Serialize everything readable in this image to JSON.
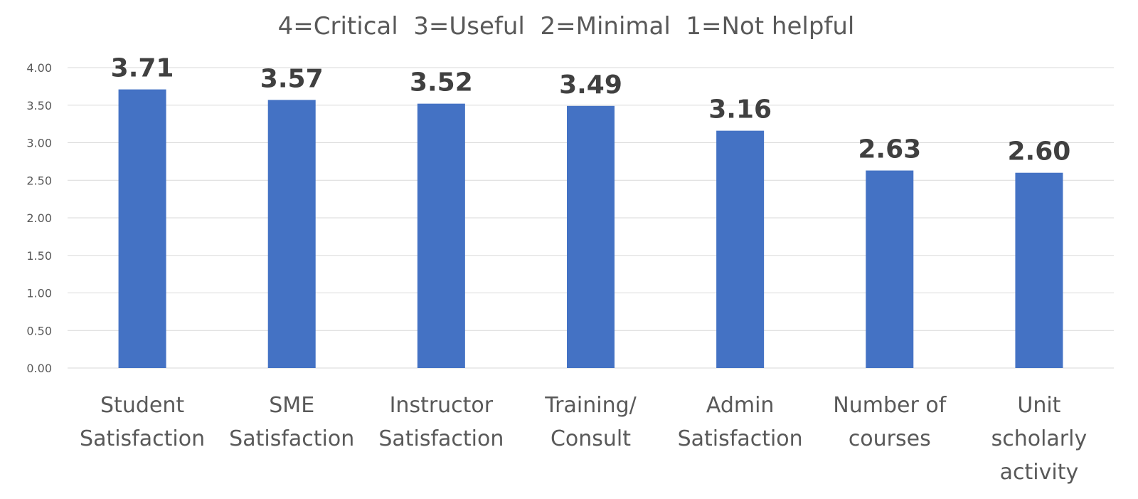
{
  "chart_data": {
    "type": "bar",
    "title": "4=Critical  3=Useful  2=Minimal  1=Not helpful",
    "xlabel": "",
    "ylabel": "",
    "categories": [
      [
        "Student",
        "Satisfaction"
      ],
      [
        "SME",
        "Satisfaction"
      ],
      [
        "Instructor",
        "Satisfaction"
      ],
      [
        "Training/",
        "Consult"
      ],
      [
        "Admin",
        "Satisfaction"
      ],
      [
        "Number of",
        "courses"
      ],
      [
        "Unit",
        "scholarly",
        "activity"
      ]
    ],
    "values": [
      3.71,
      3.57,
      3.52,
      3.49,
      3.16,
      2.63,
      2.6
    ],
    "data_labels": [
      "3.71",
      "3.57",
      "3.52",
      "3.49",
      "3.16",
      "2.63",
      "2.60"
    ],
    "y_ticks": [
      "0.00",
      "0.50",
      "1.00",
      "1.50",
      "2.00",
      "2.50",
      "3.00",
      "3.50",
      "4.00"
    ],
    "ylim": [
      0,
      4
    ],
    "grid": true,
    "legend": "none",
    "colors": {
      "bar": "#4472c4",
      "grid": "#d9d9d9",
      "text": "#595959",
      "data_label": "#404040"
    }
  }
}
